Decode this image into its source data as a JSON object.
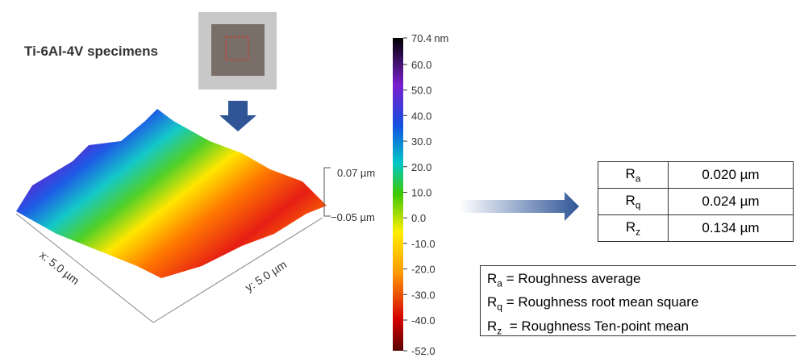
{
  "specimen_label": "Ti-6Al-4V specimens",
  "surface": {
    "x_label": "x: 5.0 µm",
    "y_label": "y: 5.0 µm",
    "z_ticks": [
      "0.07 µm",
      "−0.05 µm"
    ]
  },
  "colorbar": {
    "unit": "nm",
    "lim": [
      -52.0,
      70.4
    ],
    "ticks": [
      {
        "value": 70.4,
        "label": "70.4"
      },
      {
        "value": 60.0,
        "label": "60.0"
      },
      {
        "value": 50.0,
        "label": "50.0"
      },
      {
        "value": 40.0,
        "label": "40.0"
      },
      {
        "value": 30.0,
        "label": "30.0"
      },
      {
        "value": 20.0,
        "label": "20.0"
      },
      {
        "value": 10.0,
        "label": "10.0"
      },
      {
        "value": 0.0,
        "label": "0.0"
      },
      {
        "value": -10.0,
        "label": "-10.0"
      },
      {
        "value": -20.0,
        "label": "-20.0"
      },
      {
        "value": -30.0,
        "label": "-30.0"
      },
      {
        "value": -40.0,
        "label": "-40.0"
      },
      {
        "value": -52.0,
        "label": "-52.0"
      }
    ]
  },
  "table": {
    "rows": [
      {
        "symbol": "R",
        "sub": "a",
        "value": "0.020 µm"
      },
      {
        "symbol": "R",
        "sub": "q",
        "value": "0.024 µm"
      },
      {
        "symbol": "R",
        "sub": "z",
        "value": "0.134 µm"
      }
    ]
  },
  "definitions": [
    {
      "symbol": "R",
      "sub": "a",
      "text": "= Roughness average"
    },
    {
      "symbol": "R",
      "sub": "q",
      "text": "= Roughness root mean square"
    },
    {
      "symbol": "R",
      "sub": "z",
      "text": " = Roughness Ten-point mean"
    }
  ]
}
